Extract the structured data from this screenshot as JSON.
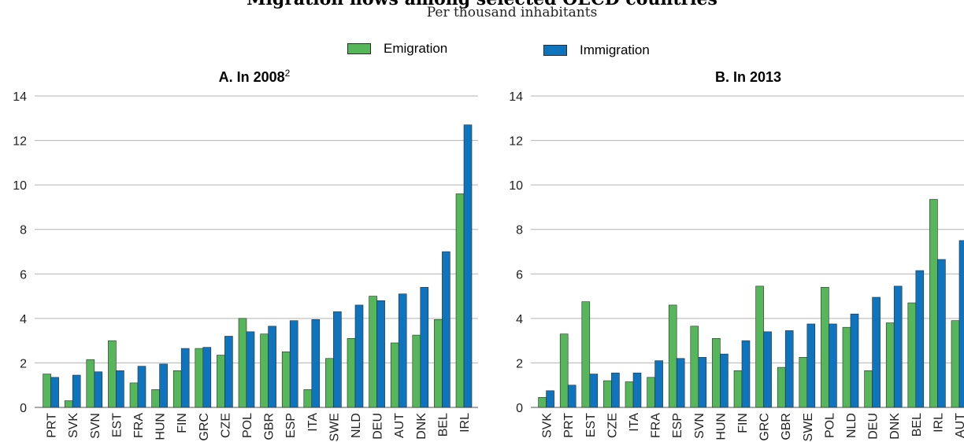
{
  "header": {
    "title": "Migration flows among selected OECD countries",
    "subtitle": "Per thousand inhabitants"
  },
  "legend": {
    "emigration": "Emigration",
    "immigration": "Immigration"
  },
  "colors": {
    "emigration": "#56b65a",
    "immigration": "#0f74be",
    "grid": "#b3b3b3",
    "axis": "#555555"
  },
  "chart_data": [
    {
      "type": "bar",
      "title": "A. In 2008",
      "title_superscript": "2",
      "ylim": [
        0,
        14
      ],
      "yticks": [
        0,
        2,
        4,
        6,
        8,
        10,
        12,
        14
      ],
      "grid": true,
      "categories": [
        "PRT",
        "SVK",
        "SVN",
        "EST",
        "FRA",
        "HUN",
        "FIN",
        "GRC",
        "CZE",
        "POL",
        "GBR",
        "ESP",
        "ITA",
        "SWE",
        "NLD",
        "DEU",
        "AUT",
        "DNK",
        "BEL",
        "IRL"
      ],
      "series": [
        {
          "name": "Emigration",
          "values": [
            1.5,
            0.3,
            2.15,
            3.0,
            1.1,
            0.8,
            1.65,
            2.65,
            2.35,
            4.0,
            3.3,
            2.5,
            0.8,
            2.2,
            3.1,
            5.0,
            2.9,
            3.25,
            3.95,
            9.6
          ]
        },
        {
          "name": "Immigration",
          "values": [
            1.35,
            1.45,
            1.6,
            1.65,
            1.85,
            1.95,
            2.65,
            2.7,
            3.2,
            3.4,
            3.65,
            3.9,
            3.95,
            4.3,
            4.6,
            4.8,
            5.1,
            5.4,
            7.0,
            12.7
          ]
        }
      ]
    },
    {
      "type": "bar",
      "title": "B. In 2013",
      "ylim": [
        0,
        14
      ],
      "yticks": [
        0,
        2,
        4,
        6,
        8,
        10,
        12,
        14
      ],
      "grid": true,
      "categories": [
        "SVK",
        "PRT",
        "EST",
        "CZE",
        "ITA",
        "FRA",
        "ESP",
        "SVN",
        "HUN",
        "FIN",
        "GRC",
        "GBR",
        "SWE",
        "POL",
        "NLD",
        "DEU",
        "DNK",
        "BEL",
        "IRL",
        "AUT"
      ],
      "series": [
        {
          "name": "Emigration",
          "values": [
            0.45,
            3.3,
            4.75,
            1.2,
            1.15,
            1.35,
            4.6,
            3.65,
            3.1,
            1.65,
            5.45,
            1.8,
            2.25,
            5.4,
            3.6,
            1.65,
            3.8,
            4.7,
            9.35,
            3.9
          ]
        },
        {
          "name": "Immigration",
          "values": [
            0.75,
            1.0,
            1.5,
            1.55,
            1.55,
            2.1,
            2.2,
            2.25,
            2.4,
            3.0,
            3.4,
            3.45,
            3.75,
            3.75,
            4.2,
            4.95,
            5.45,
            6.15,
            6.65,
            7.5
          ]
        }
      ]
    }
  ]
}
